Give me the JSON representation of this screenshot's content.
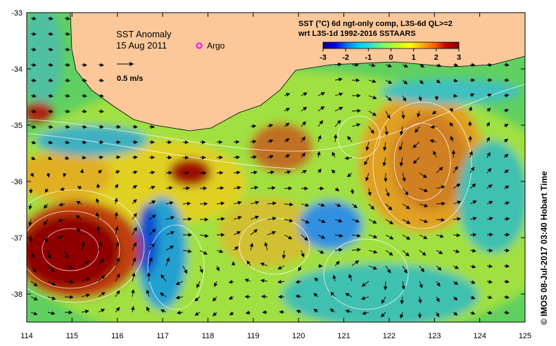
{
  "map": {
    "title": "SST Anomaly",
    "date": "15 Aug 2011",
    "argo_label": "Argo",
    "argo_color": "#ff00ff",
    "scale_label": "0.5 m/s",
    "land_color": "#fcc89a",
    "lon_ticks": [
      "114",
      "115",
      "116",
      "117",
      "118",
      "119",
      "120",
      "121",
      "122",
      "123",
      "124",
      "125"
    ],
    "lat_ticks": [
      "-33",
      "-34",
      "-35",
      "-36",
      "-37",
      "-38"
    ],
    "lon_range": [
      114,
      125
    ],
    "lat_range": [
      -38.5,
      -33
    ]
  },
  "legend": {
    "line1": "SST (°C) 6d ngt-only comp, L3S-6d QL>=2",
    "line2": "wrt L3S-1d 1992-2016 SSTAARS",
    "ticks": [
      "-3",
      "-2",
      "-1",
      "0",
      "1",
      "2",
      "3"
    ],
    "range": [
      -3,
      3
    ],
    "colormap": [
      "#000080",
      "#0000ff",
      "#0080ff",
      "#00d0ff",
      "#40e0c0",
      "#80ff60",
      "#c0ff20",
      "#ffff00",
      "#ffb000",
      "#ff6000",
      "#c00000",
      "#800000"
    ]
  },
  "credit": "©  IMOS 08-Jul-2017 03:40 Hobart Time"
}
